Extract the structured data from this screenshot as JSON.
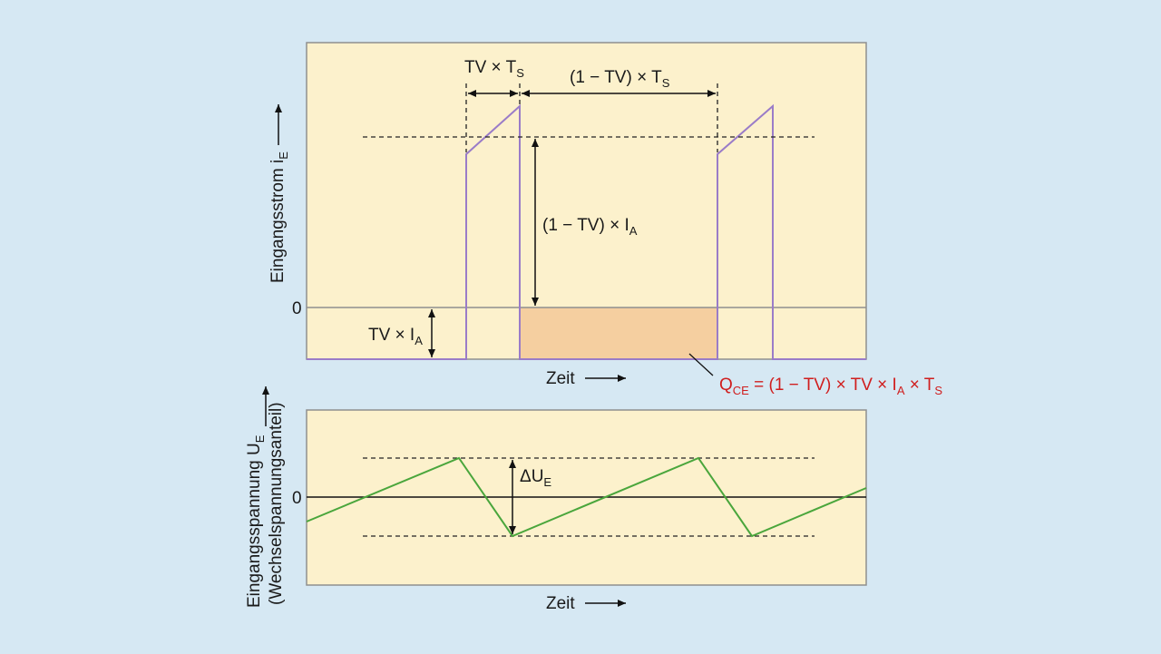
{
  "colors": {
    "background": "#d6e8f3",
    "panel": "#fcf1cc",
    "current_trace": "#9a7cc8",
    "charge_fill": "#f5cfa0",
    "voltage_trace": "#4aa63c",
    "formula": "#d01e1e"
  },
  "top_plot": {
    "y_axis_label": "Eingangsstrom i",
    "y_axis_sub": "E",
    "zero_label": "0",
    "x_axis_label": "Zeit",
    "on_time": {
      "main": "TV × T",
      "sub": "S"
    },
    "off_time": {
      "main": "(1 − TV) × T",
      "sub": "S"
    },
    "peak_current": {
      "main": "(1 − TV) × I",
      "sub": "A"
    },
    "negative_current": {
      "main": "TV × I",
      "sub": "A"
    },
    "charge_formula": {
      "q": "Q",
      "q_sub": "CE",
      "mid": " = (1 − TV) × TV × I",
      "i_sub": "A",
      "end": " × T",
      "t_sub": "S"
    }
  },
  "bottom_plot": {
    "y_axis_label_1": "Eingangsspannung U",
    "y_axis_sub": "E",
    "y_axis_label_2": "(Wechselspannungsanteil)",
    "zero_label": "0",
    "x_axis_label": "Zeit",
    "ripple": {
      "main": "ΔU",
      "sub": "E"
    }
  }
}
